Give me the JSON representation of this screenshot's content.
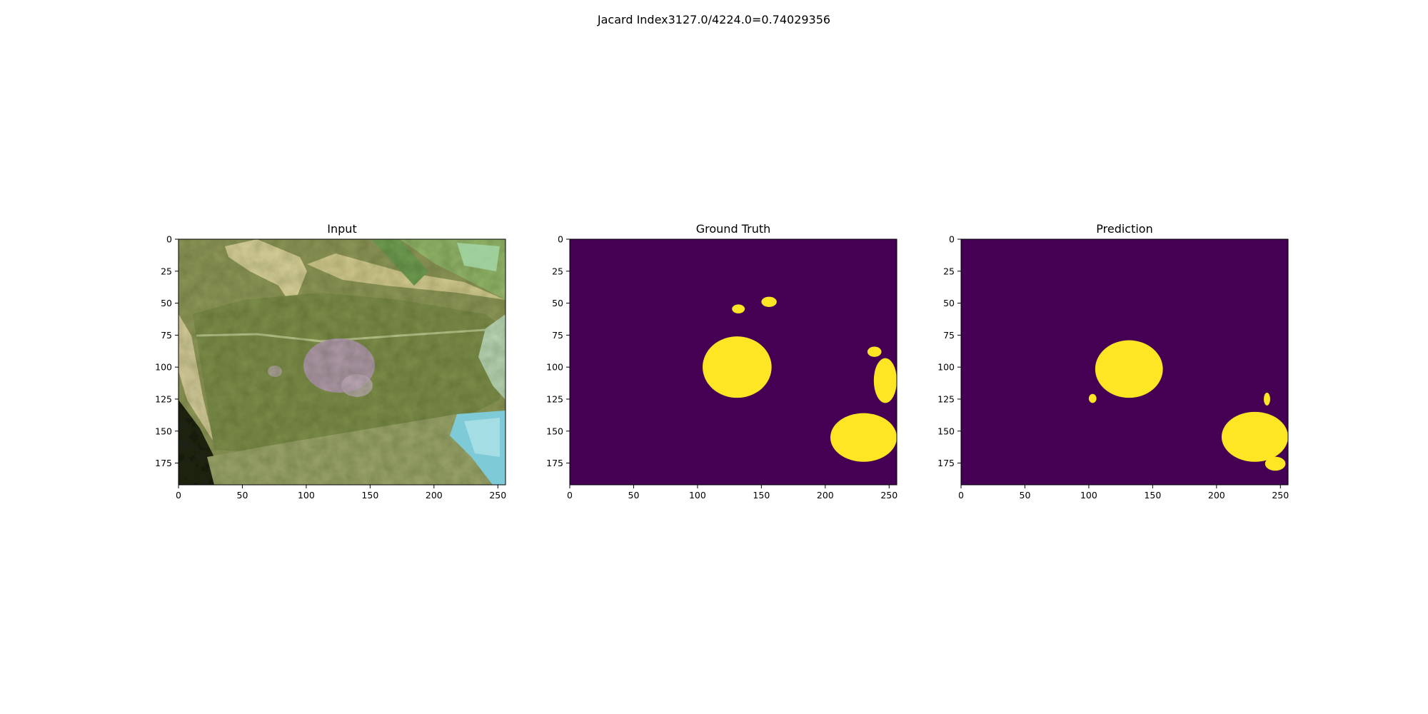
{
  "figure": {
    "suptitle": "Jacard Index3127.0/4224.0=0.74029356"
  },
  "colors": {
    "mask_background": "#440154",
    "mask_foreground": "#fde725"
  },
  "chart_data": [
    {
      "type": "image",
      "title": "Input",
      "image_shape": [
        192,
        256
      ],
      "xlim": [
        0,
        256
      ],
      "ylim": [
        192,
        0
      ],
      "xticks": [
        0,
        50,
        100,
        150,
        200,
        250
      ],
      "yticks": [
        0,
        25,
        50,
        75,
        100,
        125,
        150,
        175
      ],
      "content": "RGB photo of a green tomato leaf with a pale purplish lesion near the center"
    },
    {
      "type": "heatmap",
      "title": "Ground Truth",
      "image_shape": [
        192,
        256
      ],
      "xlim": [
        0,
        256
      ],
      "ylim": [
        192,
        0
      ],
      "xticks": [
        0,
        50,
        100,
        150,
        200,
        250
      ],
      "yticks": [
        0,
        25,
        50,
        75,
        100,
        125,
        150,
        175
      ],
      "values": [
        0,
        1
      ],
      "regions": [
        {
          "shape": "blob",
          "x_range": [
            104,
            158
          ],
          "y_range": [
            76,
            124
          ]
        },
        {
          "shape": "blob",
          "x_range": [
            127,
            137
          ],
          "y_range": [
            51,
            58
          ]
        },
        {
          "shape": "blob",
          "x_range": [
            150,
            162
          ],
          "y_range": [
            45,
            53
          ]
        },
        {
          "shape": "blob",
          "x_range": [
            233,
            244
          ],
          "y_range": [
            84,
            92
          ]
        },
        {
          "shape": "blob",
          "x_range": [
            238,
            256
          ],
          "y_range": [
            93,
            128
          ]
        },
        {
          "shape": "blob",
          "x_range": [
            204,
            256
          ],
          "y_range": [
            136,
            174
          ]
        }
      ]
    },
    {
      "type": "heatmap",
      "title": "Prediction",
      "image_shape": [
        192,
        256
      ],
      "xlim": [
        0,
        256
      ],
      "ylim": [
        192,
        0
      ],
      "xticks": [
        0,
        50,
        100,
        150,
        200,
        250
      ],
      "yticks": [
        0,
        25,
        50,
        75,
        100,
        125,
        150,
        175
      ],
      "values": [
        0,
        1
      ],
      "regions": [
        {
          "shape": "blob",
          "x_range": [
            105,
            158
          ],
          "y_range": [
            79,
            124
          ]
        },
        {
          "shape": "blob",
          "x_range": [
            100,
            106
          ],
          "y_range": [
            121,
            128
          ]
        },
        {
          "shape": "blob",
          "x_range": [
            237,
            242
          ],
          "y_range": [
            120,
            130
          ]
        },
        {
          "shape": "blob",
          "x_range": [
            204,
            256
          ],
          "y_range": [
            135,
            174
          ]
        },
        {
          "shape": "blob",
          "x_range": [
            238,
            254
          ],
          "y_range": [
            170,
            181
          ]
        }
      ]
    }
  ]
}
